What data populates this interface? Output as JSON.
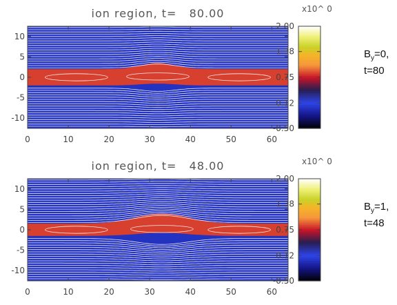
{
  "chart_data": [
    {
      "type": "heatmap",
      "title": "ion region, t=   80.00",
      "xlim": [
        0,
        64
      ],
      "ylim": [
        -12.5,
        12.5
      ],
      "x_ticks": [
        "0",
        "10",
        "20",
        "30",
        "40",
        "50",
        "60"
      ],
      "y_ticks": [
        "10",
        "5",
        "0",
        "-5",
        "-10"
      ],
      "colorbar": {
        "multiplier": "x10^  0",
        "ticks": [
          "2.00",
          "1.38",
          "0.75",
          "0.12",
          "-0.50"
        ],
        "range": [
          -0.5,
          2.0
        ]
      },
      "background_value": 0.0,
      "sheet_value": 0.85,
      "sheet_half_width": 2.0,
      "bulge": {
        "x_center": 32,
        "width": 6,
        "height": 1.5
      },
      "annotation": {
        "var": "B",
        "sub": "y",
        "value": "=0,",
        "time": "t=80"
      }
    },
    {
      "type": "heatmap",
      "title": "ion region, t=   48.00",
      "xlim": [
        0,
        64
      ],
      "ylim": [
        -12.5,
        12.5
      ],
      "x_ticks": [
        "0",
        "10",
        "20",
        "30",
        "40",
        "50",
        "60"
      ],
      "y_ticks": [
        "10",
        "5",
        "0",
        "-5",
        "-10"
      ],
      "colorbar": {
        "multiplier": "x10^  0",
        "ticks": [
          "2.00",
          "1.38",
          "0.75",
          "0.12",
          "-0.50"
        ],
        "range": [
          -0.5,
          2.0
        ]
      },
      "background_value": 0.0,
      "sheet_value": 0.85,
      "sheet_half_width": 1.5,
      "bulge": {
        "x_center": 33,
        "width": 9,
        "height": 2.5
      },
      "annotation": {
        "var": "B",
        "sub": "y",
        "value": "=1,",
        "time": "t=48"
      }
    }
  ],
  "colors": {
    "background_field": "#2d44e8",
    "sheet": "#f5a23c",
    "field_lines": "#ffffff"
  }
}
